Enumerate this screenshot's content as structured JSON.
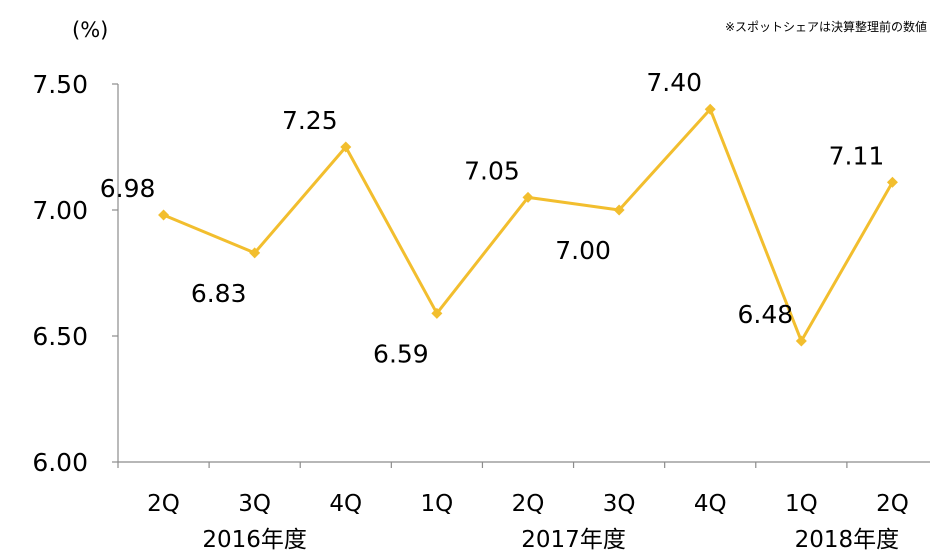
{
  "unit_label": "(%)",
  "note": "※スポットシェアは決算整理前の数値",
  "colors": {
    "line": "#F2BE2E",
    "axis": "#8c8c8c"
  },
  "chart_data": {
    "type": "line",
    "categories": [
      "2Q",
      "3Q",
      "4Q",
      "1Q",
      "2Q",
      "3Q",
      "4Q",
      "1Q",
      "2Q"
    ],
    "groups": [
      {
        "label": "2016年度",
        "start": 0,
        "end": 2
      },
      {
        "label": "2017年度",
        "start": 3,
        "end": 6
      },
      {
        "label": "2018年度",
        "start": 7,
        "end": 8
      }
    ],
    "series": [
      {
        "values": [
          6.98,
          6.83,
          7.25,
          6.59,
          7.05,
          7.0,
          7.4,
          6.48,
          7.11
        ]
      }
    ],
    "data_labels": [
      "6.98",
      "6.83",
      "7.25",
      "6.59",
      "7.05",
      "7.00",
      "7.40",
      "6.48",
      "7.11"
    ],
    "label_positions": [
      "above",
      "below",
      "above",
      "below",
      "above",
      "below",
      "above",
      "above",
      "above"
    ],
    "yticks": [
      "6.00",
      "6.50",
      "7.00",
      "7.50"
    ],
    "ylim": [
      6.0,
      7.5
    ],
    "grid": false,
    "legend": "none",
    "marker": "diamond"
  }
}
